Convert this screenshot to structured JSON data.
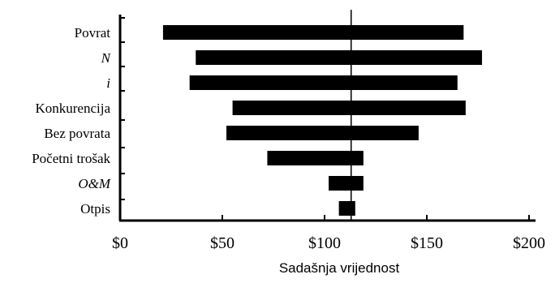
{
  "chart_data": {
    "type": "bar",
    "subtype": "tornado",
    "title": "",
    "xlabel": "Sadašnja vrijednost",
    "ylabel": "",
    "xlim": [
      0,
      200
    ],
    "x_ticks": [
      0,
      50,
      100,
      150,
      200
    ],
    "x_tick_labels": [
      "$0",
      "$50",
      "$100",
      "$150",
      "$200"
    ],
    "base_value": 113,
    "grid": false,
    "legend": "none",
    "bar_color": "#000000",
    "categories": [
      {
        "label": "Povrat",
        "italic": false,
        "low": 21,
        "high": 168
      },
      {
        "label": "N",
        "italic": true,
        "low": 37,
        "high": 177
      },
      {
        "label": "i",
        "italic": true,
        "low": 34,
        "high": 165
      },
      {
        "label": "Konkurencija",
        "italic": false,
        "low": 55,
        "high": 169
      },
      {
        "label": "Bez povrata",
        "italic": false,
        "low": 52,
        "high": 146
      },
      {
        "label": "Početni trošak",
        "italic": false,
        "low": 72,
        "high": 119
      },
      {
        "label": "O&M",
        "italic": true,
        "low": 102,
        "high": 119
      },
      {
        "label": "Otpis",
        "italic": false,
        "low": 107,
        "high": 115
      }
    ]
  }
}
